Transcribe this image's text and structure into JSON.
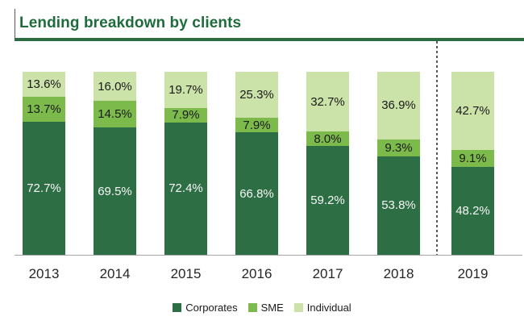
{
  "title": "Lending breakdown by clients",
  "colors": {
    "title_text": "#1e6b3c",
    "title_underline": "#2a6b3f",
    "axis_line": "#a6a6a6",
    "separator_line": "#595959",
    "year_label": "#262626"
  },
  "chart_data": {
    "type": "bar",
    "stacked": true,
    "units": "percent",
    "value_suffix": "%",
    "ylim": [
      0,
      100
    ],
    "grid": false,
    "legend_position": "bottom",
    "categories": [
      "2013",
      "2014",
      "2015",
      "2016",
      "2017",
      "2018",
      "2019"
    ],
    "series": [
      {
        "name": "Corporates",
        "color": "#2d6e44",
        "label_color": "#f7f7f7",
        "values": [
          72.7,
          69.5,
          72.4,
          66.8,
          59.2,
          53.8,
          48.2
        ]
      },
      {
        "name": "SME",
        "color": "#7cba4c",
        "label_color": "#1a1a1a",
        "values": [
          13.7,
          14.5,
          7.9,
          7.9,
          8.0,
          9.3,
          9.1
        ]
      },
      {
        "name": "Individual",
        "color": "#cbe3a9",
        "label_color": "#1a1a1a",
        "values": [
          13.6,
          16.0,
          19.7,
          25.3,
          32.7,
          36.9,
          42.7
        ]
      }
    ],
    "separator_after_category": "2018"
  },
  "legend": {
    "items": [
      {
        "label": "Corporates"
      },
      {
        "label": "SME"
      },
      {
        "label": "Individual"
      }
    ]
  }
}
